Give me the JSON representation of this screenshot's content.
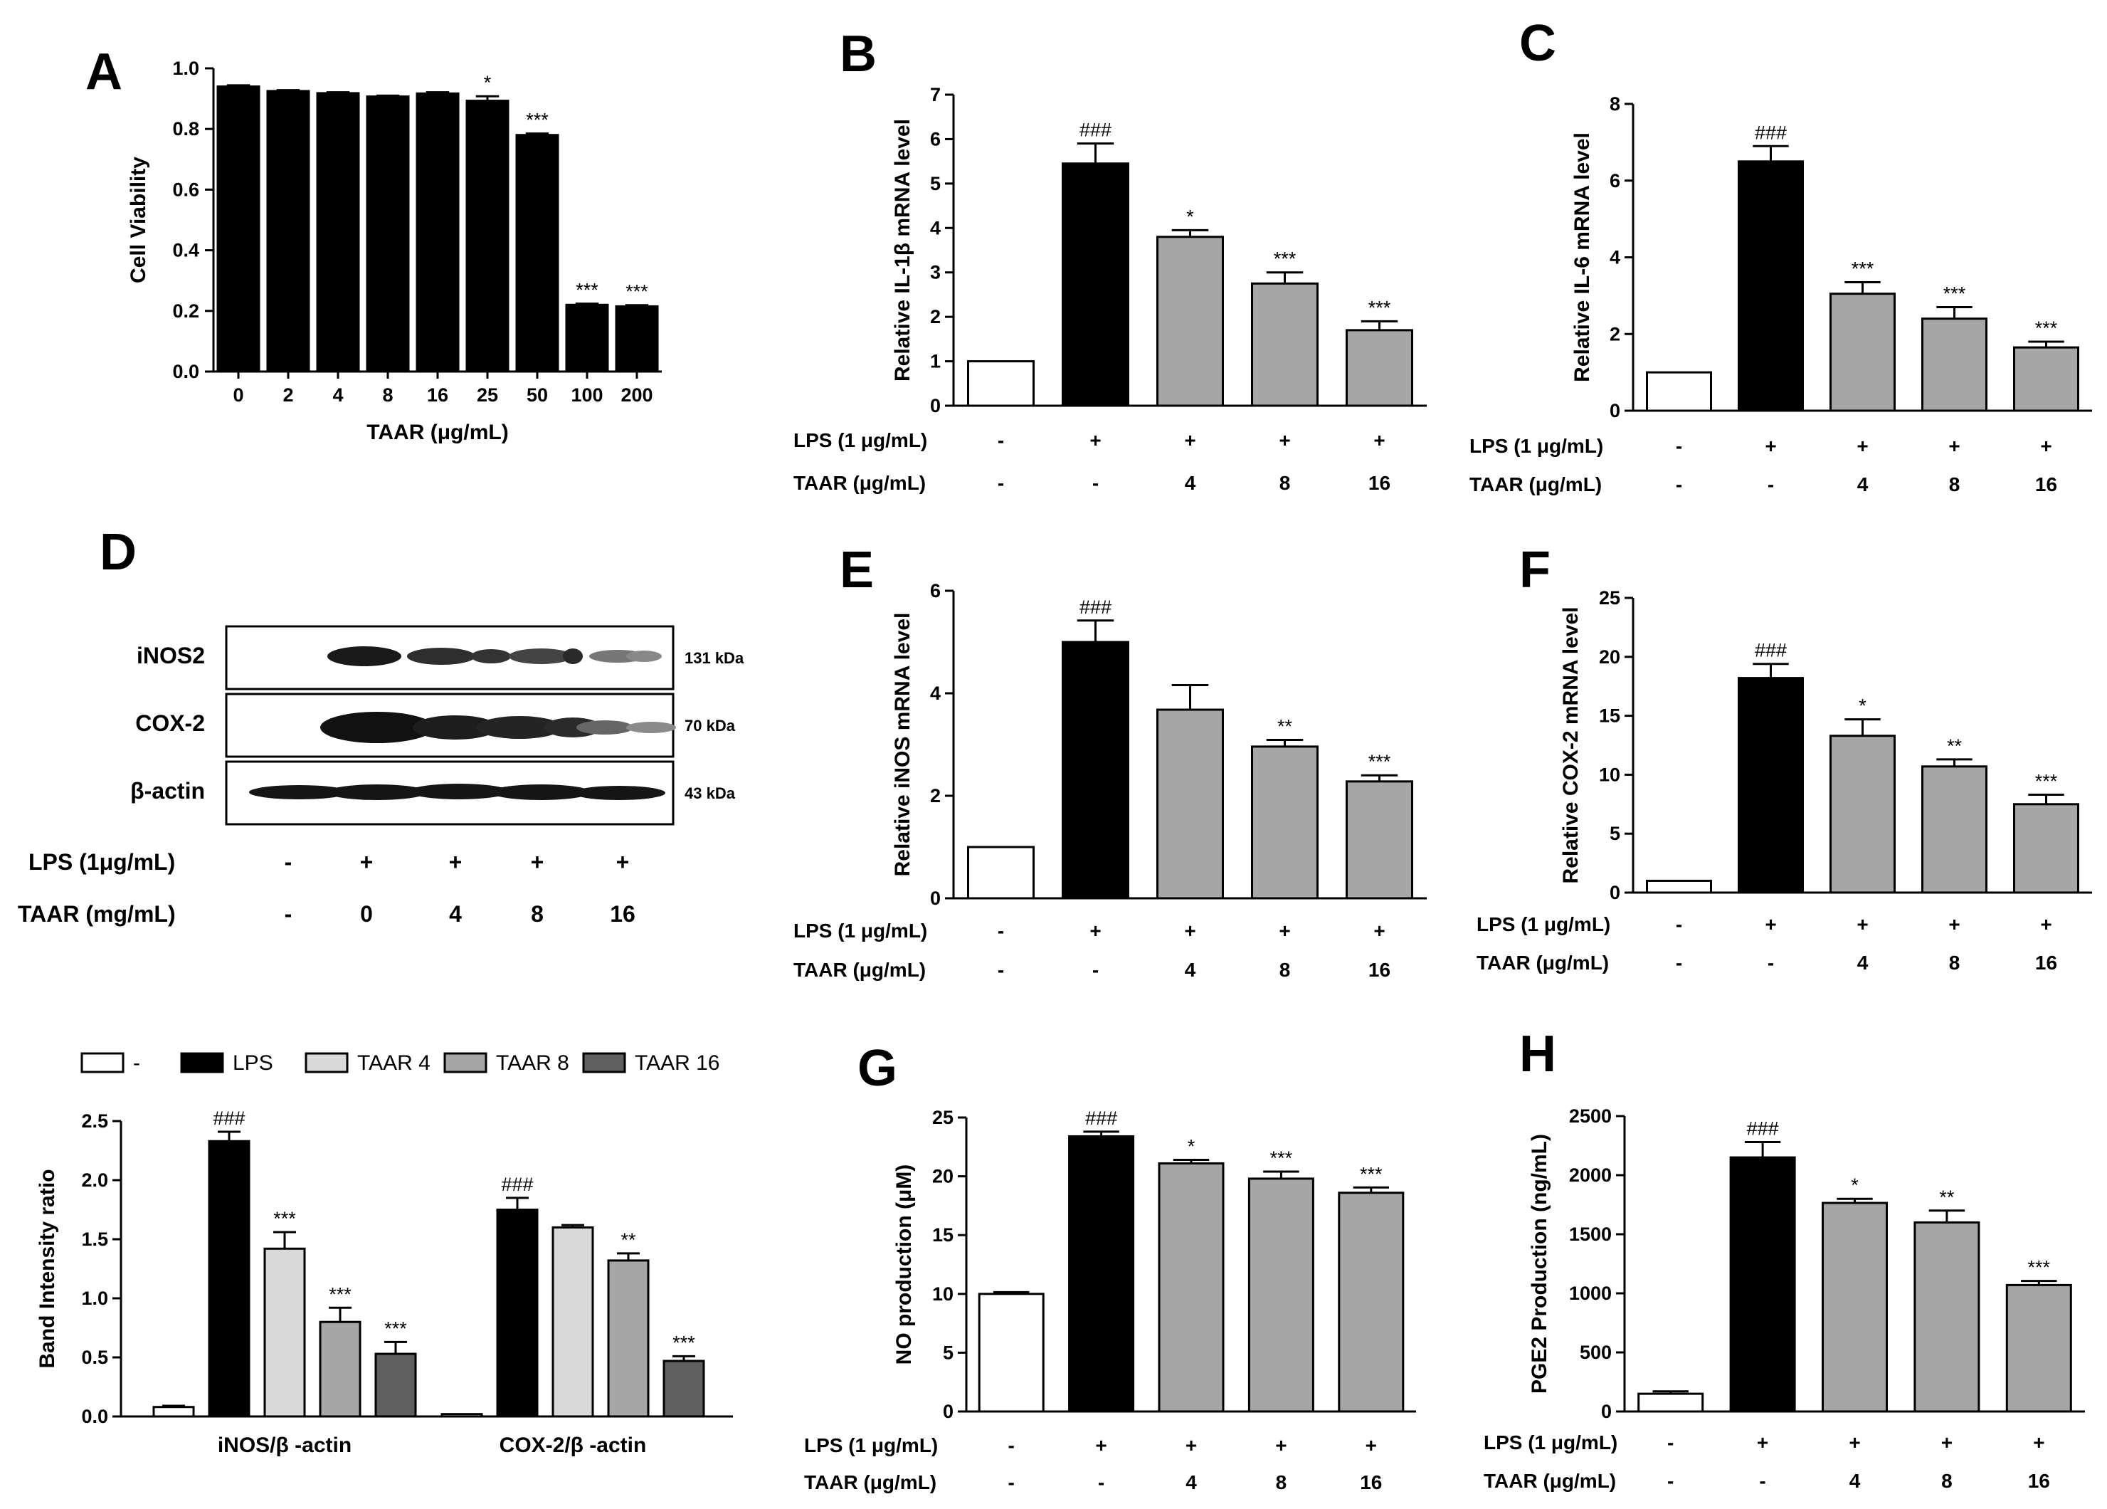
{
  "colors": {
    "black": "#000000",
    "white": "#ffffff",
    "gray": "#a6a6a6",
    "light_gray": "#d9d9d9",
    "medium_gray": "#a6a6a6",
    "dark_gray": "#606060"
  },
  "chart_data": [
    {
      "panel": "A",
      "type": "bar",
      "xlabel": "TAAR (μg/mL)",
      "ylabel": "Cell Viability",
      "ylim": [
        0,
        1.0
      ],
      "yticks": [
        "0.0",
        "0.2",
        "0.4",
        "0.6",
        "0.8",
        "1.0"
      ],
      "categories": [
        "0",
        "2",
        "4",
        "8",
        "16",
        "25",
        "50",
        "100",
        "200"
      ],
      "values": [
        0.94,
        0.925,
        0.918,
        0.907,
        0.917,
        0.893,
        0.78,
        0.22,
        0.215
      ],
      "errors": [
        0.004,
        0.003,
        0.003,
        0.003,
        0.004,
        0.015,
        0.005,
        0.004,
        0.004
      ],
      "significance": [
        "",
        "",
        "",
        "",
        "",
        "*",
        "***",
        "***",
        "***"
      ]
    },
    {
      "panel": "B",
      "type": "bar",
      "ylabel": "Relative IL-1β mRNA level",
      "ylim": [
        0,
        7
      ],
      "yticks": [
        "0",
        "1",
        "2",
        "3",
        "4",
        "5",
        "6",
        "7"
      ],
      "values": [
        1.0,
        5.45,
        3.8,
        2.75,
        1.7
      ],
      "errors": [
        0,
        0.45,
        0.15,
        0.25,
        0.2
      ],
      "significance": [
        "",
        "###",
        "*",
        "***",
        "***"
      ],
      "lps_label": "LPS (1 μg/mL)",
      "lps_row": [
        "-",
        "+",
        "+",
        "+",
        "+"
      ],
      "taar_label": "TAAR (μg/mL)",
      "taar_row": [
        "-",
        "-",
        "4",
        "8",
        "16"
      ]
    },
    {
      "panel": "C",
      "type": "bar",
      "ylabel": "Relative IL-6 mRNA level",
      "ylim": [
        0,
        8
      ],
      "yticks": [
        "0",
        "2",
        "4",
        "6",
        "8"
      ],
      "values": [
        1.0,
        6.5,
        3.05,
        2.4,
        1.65
      ],
      "errors": [
        0,
        0.4,
        0.3,
        0.3,
        0.15
      ],
      "significance": [
        "",
        "###",
        "***",
        "***",
        "***"
      ],
      "lps_label": "LPS (1 μg/mL)",
      "lps_row": [
        "-",
        "+",
        "+",
        "+",
        "+"
      ],
      "taar_label": "TAAR (μg/mL)",
      "taar_row": [
        "-",
        "-",
        "4",
        "8",
        "16"
      ]
    },
    {
      "panel": "E",
      "type": "bar",
      "ylabel": "Relative iNOS mRNA level",
      "ylim": [
        0,
        6
      ],
      "yticks": [
        "0",
        "2",
        "4",
        "6"
      ],
      "values": [
        1.0,
        5.0,
        3.68,
        2.96,
        2.28
      ],
      "errors": [
        0,
        0.42,
        0.48,
        0.13,
        0.12
      ],
      "significance": [
        "",
        "###",
        "",
        "**",
        "***"
      ],
      "lps_label": "LPS (1 μg/mL)",
      "lps_row": [
        "-",
        "+",
        "+",
        "+",
        "+"
      ],
      "taar_label": "TAAR (μg/mL)",
      "taar_row": [
        "-",
        "-",
        "4",
        "8",
        "16"
      ]
    },
    {
      "panel": "F",
      "type": "bar",
      "ylabel": "Relative COX-2 mRNA level",
      "ylim": [
        0,
        25
      ],
      "yticks": [
        "0",
        "5",
        "10",
        "15",
        "20",
        "25"
      ],
      "values": [
        1.0,
        18.2,
        13.3,
        10.7,
        7.5
      ],
      "errors": [
        0,
        1.2,
        1.4,
        0.6,
        0.8
      ],
      "significance": [
        "",
        "###",
        "*",
        "**",
        "***"
      ],
      "lps_label": "LPS (1 μg/mL)",
      "lps_row": [
        "-",
        "+",
        "+",
        "+",
        "+"
      ],
      "taar_label": "TAAR (μg/mL)",
      "taar_row": [
        "-",
        "-",
        "4",
        "8",
        "16"
      ]
    },
    {
      "panel": "G",
      "type": "bar",
      "ylabel": "NO production (μM)",
      "ylim": [
        0,
        25
      ],
      "yticks": [
        "0",
        "5",
        "10",
        "15",
        "20",
        "25"
      ],
      "values": [
        10.0,
        23.4,
        21.1,
        19.8,
        18.6
      ],
      "errors": [
        0.15,
        0.4,
        0.3,
        0.6,
        0.45
      ],
      "significance": [
        "",
        "###",
        "*",
        "***",
        "***"
      ],
      "lps_label": "LPS (1 μg/mL)",
      "lps_row": [
        "-",
        "+",
        "+",
        "+",
        "+"
      ],
      "taar_label": "TAAR (μg/mL)",
      "taar_row": [
        "-",
        "-",
        "4",
        "8",
        "16"
      ]
    },
    {
      "panel": "H",
      "type": "bar",
      "ylabel": "PGE2 Production (ng/mL)",
      "ylim": [
        0,
        2500
      ],
      "yticks": [
        "0",
        "500",
        "1000",
        "1500",
        "2000",
        "2500"
      ],
      "values": [
        150,
        2150,
        1765,
        1600,
        1070
      ],
      "errors": [
        20,
        130,
        35,
        100,
        35
      ],
      "significance": [
        "",
        "###",
        "*",
        "**",
        "***"
      ],
      "lps_label": "LPS (1 μg/mL)",
      "lps_row": [
        "-",
        "+",
        "+",
        "+",
        "+"
      ],
      "taar_label": "TAAR (μg/mL)",
      "taar_row": [
        "-",
        "-",
        "4",
        "8",
        "16"
      ]
    },
    {
      "panel": "D-quant",
      "type": "bar",
      "ylabel": "Band Intensity ratio",
      "ylim": [
        0,
        2.5
      ],
      "yticks": [
        "0.0",
        "0.5",
        "1.0",
        "1.5",
        "2.0",
        "2.5"
      ],
      "categories": [
        "iNOS/β -actin",
        "COX-2/β -actin"
      ],
      "legend_position": "top",
      "series": [
        {
          "name": "-",
          "values": [
            0.08,
            0.02
          ],
          "errors": [
            0.01,
            0.005
          ],
          "significance": [
            "",
            ""
          ]
        },
        {
          "name": "LPS",
          "values": [
            2.33,
            1.75
          ],
          "errors": [
            0.08,
            0.1
          ],
          "significance": [
            "###",
            "###"
          ]
        },
        {
          "name": "TAAR 4",
          "values": [
            1.42,
            1.6
          ],
          "errors": [
            0.14,
            0.02
          ],
          "significance": [
            "***",
            ""
          ]
        },
        {
          "name": "TAAR 8",
          "values": [
            0.8,
            1.32
          ],
          "errors": [
            0.12,
            0.06
          ],
          "significance": [
            "***",
            "**"
          ]
        },
        {
          "name": "TAAR 16",
          "values": [
            0.53,
            0.47
          ],
          "errors": [
            0.1,
            0.04
          ],
          "significance": [
            "***",
            "***"
          ]
        }
      ]
    }
  ],
  "panel_letters": {
    "A": "A",
    "B": "B",
    "C": "C",
    "D": "D",
    "E": "E",
    "F": "F",
    "G": "G",
    "H": "H"
  },
  "western_blot": {
    "bands": [
      {
        "label": "iNOS2",
        "kda": "131 kDa"
      },
      {
        "label": "COX-2",
        "kda": "70 kDa"
      },
      {
        "label": "β-actin",
        "kda": "43 kDa"
      }
    ],
    "lps_label": "LPS (1μg/mL)",
    "lps_row": [
      "-",
      "+",
      "+",
      "+",
      "+"
    ],
    "taar_label": "TAAR (mg/mL)",
    "taar_row": [
      "-",
      "0",
      "4",
      "8",
      "16"
    ]
  }
}
